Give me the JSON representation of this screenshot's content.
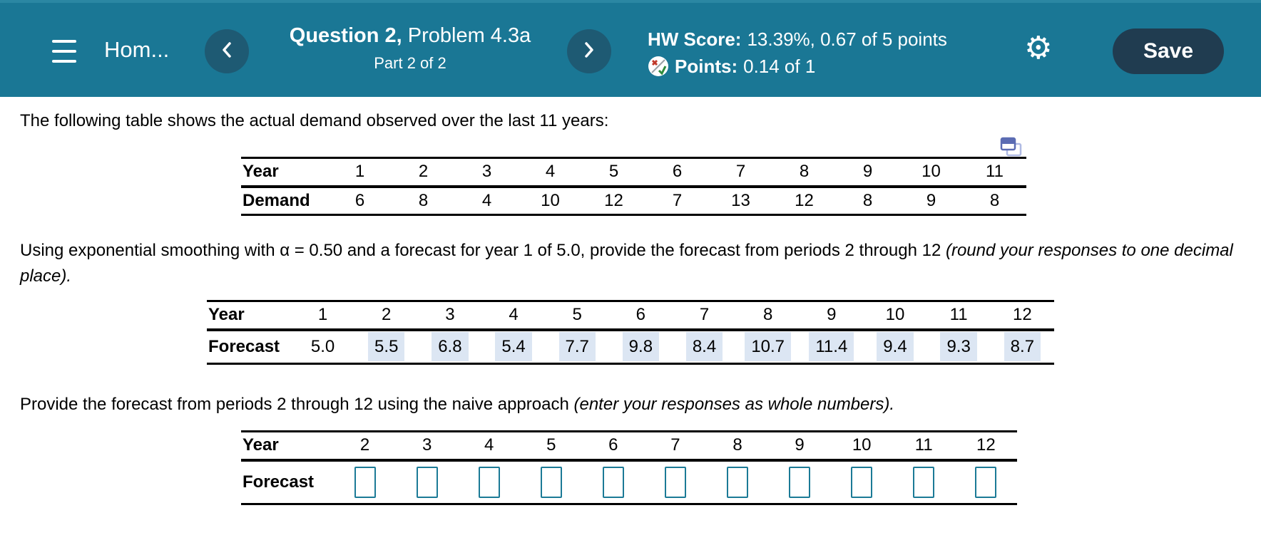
{
  "colors": {
    "header_bg": "#1A7795",
    "nav_circle_bg": "#1E5A73",
    "save_bg": "#203C50",
    "answer_highlight": "#DCE6F3",
    "input_border": "#1B7A96",
    "table_icon_blue": "#5B6CB3"
  },
  "header": {
    "menu_title": "Hom...",
    "question_title_bold": "Question 2,",
    "question_title_regular": " Problem 4.3a",
    "part_label": "Part 2 of 2",
    "hw_score_label": "HW Score:",
    "hw_score_value": "13.39%, 0.67 of 5 points",
    "points_label": "Points:",
    "points_value": "0.14 of 1",
    "save_label": "Save"
  },
  "content": {
    "intro_text": "The following table shows the actual demand observed over the last 11 years:",
    "demand_table": {
      "row1_label": "Year",
      "row2_label": "Demand",
      "years": [
        "1",
        "2",
        "3",
        "4",
        "5",
        "6",
        "7",
        "8",
        "9",
        "10",
        "11"
      ],
      "values": [
        "6",
        "8",
        "4",
        "10",
        "12",
        "7",
        "13",
        "12",
        "8",
        "9",
        "8"
      ]
    },
    "smoothing_text_regular": "Using exponential smoothing with α = 0.50 and a forecast for year 1 of 5.0, provide the forecast from periods 2 through 12 ",
    "smoothing_text_italic": "(round your responses to one decimal place).",
    "forecast_table": {
      "row1_label": "Year",
      "row2_label": "Forecast",
      "years": [
        "1",
        "2",
        "3",
        "4",
        "5",
        "6",
        "7",
        "8",
        "9",
        "10",
        "11",
        "12"
      ],
      "values": [
        {
          "text": "5.0",
          "filled": false
        },
        {
          "text": "5.5",
          "filled": true
        },
        {
          "text": "6.8",
          "filled": true
        },
        {
          "text": "5.4",
          "filled": true
        },
        {
          "text": "7.7",
          "filled": true
        },
        {
          "text": "9.8",
          "filled": true
        },
        {
          "text": "8.4",
          "filled": true
        },
        {
          "text": "10.7",
          "filled": true
        },
        {
          "text": "11.4",
          "filled": true
        },
        {
          "text": "9.4",
          "filled": true
        },
        {
          "text": "9.3",
          "filled": true
        },
        {
          "text": "8.7",
          "filled": true
        }
      ]
    },
    "naive_text_regular": "Provide the forecast from periods 2 through 12 using the naive approach ",
    "naive_text_italic": "(enter your responses as whole numbers).",
    "naive_table": {
      "row1_label": "Year",
      "row2_label": "Forecast",
      "years": [
        "2",
        "3",
        "4",
        "5",
        "6",
        "7",
        "8",
        "9",
        "10",
        "11",
        "12"
      ],
      "inputs": [
        "",
        "",
        "",
        "",
        "",
        "",
        "",
        "",
        "",
        "",
        ""
      ]
    }
  }
}
